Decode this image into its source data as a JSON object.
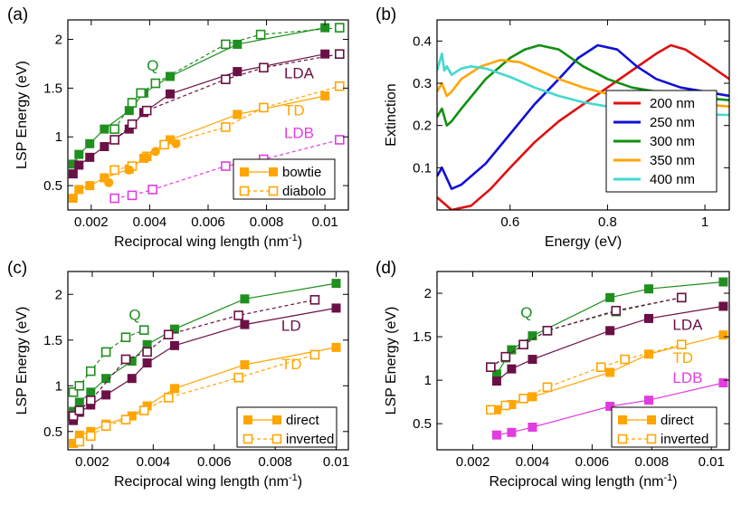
{
  "figure": {
    "description_labels": [
      "(a)",
      "(b)",
      "(c)",
      "(d)"
    ]
  },
  "colors": {
    "green": "#1f8f1f",
    "purple": "#6b1046",
    "orange": "#ffa500",
    "magenta": "#e23ce0",
    "red": "#e01010",
    "blue": "#1010d8",
    "green_b": "#119011",
    "orange_b": "#ffa500",
    "cyan": "#45d8cf"
  },
  "chart_data": [
    {
      "panel": "(a)",
      "type": "line",
      "xlabel": "Reciprocal wing length (nm",
      "xlabel_sup": "-1",
      "xlabel_tail": ")",
      "ylabel": "LSP Energy (eV)",
      "xlim": [
        0.0012,
        0.0108
      ],
      "ylim": [
        0.25,
        2.2
      ],
      "xticks": [
        0.002,
        0.004,
        0.006,
        0.008,
        0.01
      ],
      "xtick_labels": [
        "0.002",
        "0.004",
        "0.006",
        "0.008",
        "0.01"
      ],
      "yticks": [
        0.5,
        1,
        1.5,
        2
      ],
      "ytick_labels": [
        "0.5",
        "1",
        "1.5",
        "2"
      ],
      "legend": [
        {
          "label": "bowtie",
          "style": "solid",
          "marker": "filled"
        },
        {
          "label": "diabolo",
          "style": "dashed",
          "marker": "open"
        }
      ],
      "annotations": [
        {
          "text": "Q",
          "x": 0.0039,
          "y": 1.68,
          "color": "green"
        },
        {
          "text": "LDA",
          "x": 0.0086,
          "y": 1.6,
          "color": "purple"
        },
        {
          "text": "TD",
          "x": 0.0086,
          "y": 1.22,
          "color": "orange"
        },
        {
          "text": "LDB",
          "x": 0.0086,
          "y": 0.99,
          "color": "magenta"
        }
      ],
      "series": [
        {
          "name": "Q bowtie",
          "color": "green",
          "style": "solid",
          "marker": "filled",
          "x": [
            0.00138,
            0.00158,
            0.00195,
            0.00245,
            0.0033,
            0.0038,
            0.0047,
            0.007,
            0.01
          ],
          "y": [
            0.72,
            0.82,
            0.93,
            1.08,
            1.27,
            1.45,
            1.62,
            1.95,
            2.12
          ]
        },
        {
          "name": "Q diabolo",
          "color": "green",
          "style": "dashed",
          "marker": "open",
          "x": [
            0.0028,
            0.0034,
            0.0037,
            0.0042,
            0.0066,
            0.0078,
            0.0105
          ],
          "y": [
            1.08,
            1.35,
            1.45,
            1.55,
            1.95,
            2.05,
            2.12
          ]
        },
        {
          "name": "LDA bowtie",
          "color": "purple",
          "style": "solid",
          "marker": "filled",
          "x": [
            0.00138,
            0.00158,
            0.00195,
            0.00245,
            0.0033,
            0.0038,
            0.0047,
            0.007,
            0.01
          ],
          "y": [
            0.62,
            0.71,
            0.79,
            0.9,
            1.08,
            1.25,
            1.44,
            1.67,
            1.85
          ]
        },
        {
          "name": "LDA diabolo",
          "color": "purple",
          "style": "dashed",
          "marker": "open",
          "x": [
            0.0028,
            0.0034,
            0.0039,
            0.0066,
            0.0079,
            0.0105
          ],
          "y": [
            0.97,
            1.13,
            1.27,
            1.59,
            1.71,
            1.85
          ]
        },
        {
          "name": "TD bowtie",
          "color": "orange",
          "style": "solid",
          "marker": "filled",
          "x": [
            0.00138,
            0.00158,
            0.00195,
            0.00245,
            0.0033,
            0.0038,
            0.0047,
            0.007,
            0.01
          ],
          "y": [
            0.37,
            0.46,
            0.5,
            0.58,
            0.67,
            0.78,
            0.97,
            1.23,
            1.42
          ]
        },
        {
          "name": "TD diabolo",
          "color": "orange",
          "style": "dashed",
          "marker": "open",
          "x": [
            0.0028,
            0.0034,
            0.0039,
            0.0045,
            0.0066,
            0.0079,
            0.0105
          ],
          "y": [
            0.66,
            0.7,
            0.8,
            0.92,
            1.1,
            1.3,
            1.52
          ]
        },
        {
          "name": "LDB diabolo",
          "color": "magenta",
          "style": "dashed",
          "marker": "open",
          "x": [
            0.0028,
            0.0034,
            0.0041,
            0.0066,
            0.0079,
            0.0105
          ],
          "y": [
            0.37,
            0.4,
            0.46,
            0.7,
            0.77,
            0.97
          ]
        },
        {
          "name": "extra bowtie points",
          "color": "orange",
          "style": "none",
          "marker": "circle",
          "x": [
            0.0026,
            0.0033,
            0.0039,
            0.0042,
            0.0049
          ],
          "y": [
            0.53,
            0.66,
            0.79,
            0.85,
            0.93
          ]
        }
      ]
    },
    {
      "panel": "(b)",
      "type": "line",
      "xlabel": "Energy (eV)",
      "ylabel": "Extinction",
      "xlim": [
        0.45,
        1.05
      ],
      "ylim": [
        0,
        0.45
      ],
      "xticks": [
        0.6,
        0.8,
        1.0
      ],
      "xtick_labels": [
        "0.6",
        "0.8",
        "1"
      ],
      "yticks": [
        0.1,
        0.2,
        0.3,
        0.4
      ],
      "ytick_labels": [
        "0.1",
        "0.2",
        "0.3",
        "0.4"
      ],
      "legend": [
        {
          "label": "200 nm",
          "color": "red"
        },
        {
          "label": "250 nm",
          "color": "blue"
        },
        {
          "label": "300 nm",
          "color": "green_b"
        },
        {
          "label": "350 nm",
          "color": "orange_b"
        },
        {
          "label": "400 nm",
          "color": "cyan"
        }
      ],
      "series": [
        {
          "name": "200 nm",
          "color": "red",
          "x": [
            0.45,
            0.48,
            0.52,
            0.56,
            0.6,
            0.65,
            0.7,
            0.75,
            0.8,
            0.85,
            0.9,
            0.93,
            0.96,
            1.0,
            1.05
          ],
          "y": [
            0.03,
            0.0,
            0.01,
            0.05,
            0.1,
            0.16,
            0.21,
            0.25,
            0.29,
            0.33,
            0.37,
            0.39,
            0.38,
            0.35,
            0.31
          ]
        },
        {
          "name": "250 nm",
          "color": "blue",
          "x": [
            0.45,
            0.46,
            0.48,
            0.5,
            0.55,
            0.6,
            0.65,
            0.7,
            0.74,
            0.78,
            0.82,
            0.86,
            0.9,
            0.95,
            1.0,
            1.05
          ],
          "y": [
            0.08,
            0.1,
            0.05,
            0.06,
            0.11,
            0.18,
            0.25,
            0.31,
            0.36,
            0.39,
            0.38,
            0.34,
            0.31,
            0.29,
            0.28,
            0.27
          ]
        },
        {
          "name": "300 nm",
          "color": "green_b",
          "x": [
            0.45,
            0.46,
            0.47,
            0.48,
            0.5,
            0.55,
            0.6,
            0.63,
            0.66,
            0.7,
            0.75,
            0.8,
            0.85,
            0.9,
            0.95,
            1.0,
            1.05
          ],
          "y": [
            0.22,
            0.24,
            0.2,
            0.21,
            0.24,
            0.31,
            0.36,
            0.38,
            0.39,
            0.38,
            0.34,
            0.31,
            0.29,
            0.28,
            0.27,
            0.265,
            0.26
          ]
        },
        {
          "name": "350 nm",
          "color": "orange_b",
          "x": [
            0.45,
            0.46,
            0.47,
            0.48,
            0.5,
            0.54,
            0.58,
            0.62,
            0.66,
            0.7,
            0.75,
            0.8,
            0.85,
            0.9,
            0.95,
            1.0,
            1.05
          ],
          "y": [
            0.28,
            0.3,
            0.27,
            0.28,
            0.31,
            0.34,
            0.355,
            0.35,
            0.33,
            0.31,
            0.29,
            0.275,
            0.265,
            0.26,
            0.255,
            0.25,
            0.245
          ]
        },
        {
          "name": "400 nm",
          "color": "cyan",
          "x": [
            0.45,
            0.46,
            0.465,
            0.47,
            0.48,
            0.5,
            0.52,
            0.55,
            0.6,
            0.65,
            0.7,
            0.75,
            0.8,
            0.85,
            0.9,
            0.95,
            1.0,
            1.05
          ],
          "y": [
            0.33,
            0.37,
            0.33,
            0.34,
            0.32,
            0.335,
            0.34,
            0.335,
            0.315,
            0.29,
            0.27,
            0.255,
            0.245,
            0.238,
            0.232,
            0.228,
            0.226,
            0.225
          ]
        }
      ]
    },
    {
      "panel": "(c)",
      "type": "line",
      "xlabel": "Reciprocal wing length (nm",
      "xlabel_sup": "-1",
      "xlabel_tail": ")",
      "ylabel": "LSP Energy (eV)",
      "xlim": [
        0.0012,
        0.0104
      ],
      "ylim": [
        0.3,
        2.25
      ],
      "xticks": [
        0.002,
        0.004,
        0.006,
        0.008,
        0.01
      ],
      "xtick_labels": [
        "0.002",
        "0.004",
        "0.006",
        "0.008",
        "0.01"
      ],
      "yticks": [
        0.5,
        1,
        1.5,
        2
      ],
      "ytick_labels": [
        "0.5",
        "1",
        "1.5",
        "2"
      ],
      "legend": [
        {
          "label": "direct",
          "style": "solid",
          "marker": "filled"
        },
        {
          "label": "inverted",
          "style": "dashed",
          "marker": "open"
        }
      ],
      "annotations": [
        {
          "text": "Q",
          "x": 0.0032,
          "y": 1.72,
          "color": "green"
        },
        {
          "text": "LD",
          "x": 0.0082,
          "y": 1.6,
          "color": "purple"
        },
        {
          "text": "TD",
          "x": 0.0082,
          "y": 1.18,
          "color": "orange"
        }
      ],
      "series": [
        {
          "name": "Q direct",
          "color": "green",
          "style": "solid",
          "marker": "filled",
          "x": [
            0.00138,
            0.00158,
            0.00195,
            0.00245,
            0.0033,
            0.0038,
            0.0047,
            0.007,
            0.01
          ],
          "y": [
            0.72,
            0.82,
            0.93,
            1.08,
            1.27,
            1.45,
            1.62,
            1.95,
            2.12
          ]
        },
        {
          "name": "Q inverted",
          "color": "green",
          "style": "dashed",
          "marker": "open",
          "x": [
            0.00138,
            0.00158,
            0.00195,
            0.00245,
            0.0031,
            0.0037
          ],
          "y": [
            0.93,
            1.0,
            1.16,
            1.37,
            1.53,
            1.61
          ]
        },
        {
          "name": "LD direct",
          "color": "purple",
          "style": "solid",
          "marker": "filled",
          "x": [
            0.00138,
            0.00158,
            0.00195,
            0.00245,
            0.0033,
            0.0038,
            0.0047,
            0.007,
            0.01
          ],
          "y": [
            0.62,
            0.71,
            0.79,
            0.9,
            1.08,
            1.25,
            1.44,
            1.67,
            1.85
          ]
        },
        {
          "name": "LD inverted",
          "color": "purple",
          "style": "dashed",
          "marker": "open",
          "x": [
            0.00138,
            0.00158,
            0.00195,
            0.0031,
            0.0038,
            0.0045,
            0.0068,
            0.0093
          ],
          "y": [
            0.67,
            0.73,
            0.84,
            1.29,
            1.37,
            1.56,
            1.77,
            1.94
          ]
        },
        {
          "name": "TD direct",
          "color": "orange",
          "style": "solid",
          "marker": "filled",
          "x": [
            0.00138,
            0.00158,
            0.00195,
            0.00245,
            0.0033,
            0.0038,
            0.0047,
            0.007,
            0.01
          ],
          "y": [
            0.37,
            0.46,
            0.5,
            0.58,
            0.67,
            0.78,
            0.97,
            1.23,
            1.42
          ]
        },
        {
          "name": "TD inverted",
          "color": "orange",
          "style": "dashed",
          "marker": "open",
          "x": [
            0.00158,
            0.00195,
            0.00245,
            0.0031,
            0.0037,
            0.0045,
            0.0068,
            0.0093
          ],
          "y": [
            0.39,
            0.45,
            0.56,
            0.63,
            0.73,
            0.87,
            1.09,
            1.34
          ]
        }
      ]
    },
    {
      "panel": "(d)",
      "type": "line",
      "xlabel": "Reciprocal wing length (nm",
      "xlabel_sup": "-1",
      "xlabel_tail": ")",
      "ylabel": "LSP Energy (eV)",
      "xlim": [
        0.0008,
        0.0106
      ],
      "ylim": [
        0.2,
        2.25
      ],
      "xticks": [
        0.002,
        0.004,
        0.006,
        0.008,
        0.01
      ],
      "xtick_labels": [
        "0.002",
        "0.004",
        "0.006",
        "0.008",
        "0.01"
      ],
      "yticks": [
        0.5,
        1,
        1.5,
        2
      ],
      "ytick_labels": [
        "0.5",
        "1",
        "1.5",
        "2"
      ],
      "legend": [
        {
          "label": "direct",
          "style": "solid",
          "marker": "filled"
        },
        {
          "label": "inverted",
          "style": "dashed",
          "marker": "open"
        }
      ],
      "annotations": [
        {
          "text": "Q",
          "x": 0.0036,
          "y": 1.72,
          "color": "green"
        },
        {
          "text": "LDA",
          "x": 0.0087,
          "y": 1.58,
          "color": "purple"
        },
        {
          "text": "TD",
          "x": 0.0087,
          "y": 1.2,
          "color": "orange"
        },
        {
          "text": "LDB",
          "x": 0.0087,
          "y": 0.97,
          "color": "magenta"
        }
      ],
      "series": [
        {
          "name": "Q direct",
          "color": "green",
          "style": "solid",
          "marker": "filled",
          "x": [
            0.0028,
            0.0033,
            0.004,
            0.0066,
            0.0079,
            0.0104
          ],
          "y": [
            1.07,
            1.35,
            1.51,
            1.95,
            2.05,
            2.13
          ]
        },
        {
          "name": "Q inverted",
          "color": "green",
          "style": "dashed",
          "marker": "open",
          "x": [
            0.0026,
            0.0031,
            0.0037,
            0.0045,
            0.0068,
            0.009
          ],
          "y": [
            1.15,
            1.26,
            1.41,
            1.57,
            1.79,
            1.95
          ]
        },
        {
          "name": "LDA direct",
          "color": "purple",
          "style": "solid",
          "marker": "filled",
          "x": [
            0.0028,
            0.0033,
            0.004,
            0.0066,
            0.0079,
            0.0104
          ],
          "y": [
            0.99,
            1.13,
            1.24,
            1.57,
            1.71,
            1.85
          ]
        },
        {
          "name": "LDA inverted",
          "color": "purple",
          "style": "dashed",
          "marker": "open",
          "x": [
            0.0026,
            0.0031,
            0.0037,
            0.0045,
            0.0068,
            0.009
          ],
          "y": [
            1.15,
            1.27,
            1.41,
            1.57,
            1.8,
            1.95
          ]
        },
        {
          "name": "TD direct",
          "color": "orange",
          "style": "solid",
          "marker": "filled",
          "x": [
            0.0028,
            0.0033,
            0.004,
            0.0066,
            0.0079,
            0.0104
          ],
          "y": [
            0.66,
            0.72,
            0.81,
            1.09,
            1.3,
            1.52
          ]
        },
        {
          "name": "TD inverted",
          "color": "orange",
          "style": "dashed",
          "marker": "open",
          "x": [
            0.0026,
            0.0031,
            0.0037,
            0.0045,
            0.0063,
            0.0071,
            0.009
          ],
          "y": [
            0.66,
            0.71,
            0.79,
            0.92,
            1.15,
            1.24,
            1.41
          ]
        },
        {
          "name": "LDB direct",
          "color": "magenta",
          "style": "solid",
          "marker": "filled",
          "x": [
            0.0028,
            0.0033,
            0.004,
            0.0066,
            0.0079,
            0.0104
          ],
          "y": [
            0.37,
            0.4,
            0.46,
            0.7,
            0.77,
            0.97
          ]
        }
      ]
    }
  ]
}
